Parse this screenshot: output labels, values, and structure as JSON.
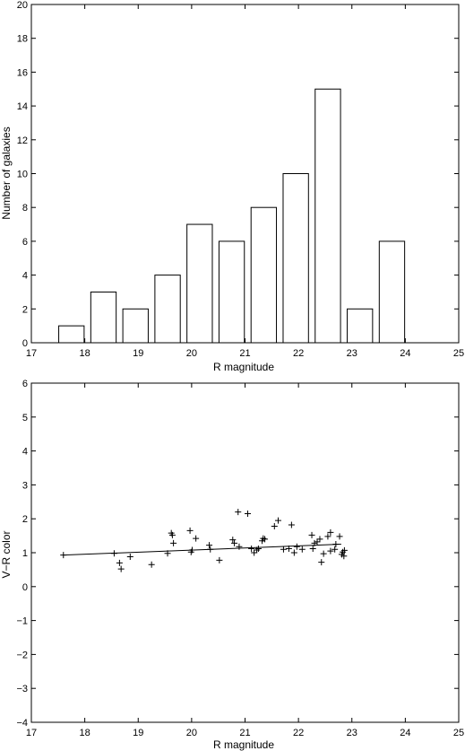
{
  "chart_data": [
    {
      "type": "bar",
      "xlabel": "R magnitude",
      "ylabel": "Number of galaxies",
      "xlim": [
        17,
        25
      ],
      "ylim": [
        0,
        20
      ],
      "xticks": [
        17,
        18,
        19,
        20,
        21,
        22,
        23,
        24,
        25
      ],
      "yticks": [
        0,
        2,
        4,
        6,
        8,
        10,
        12,
        14,
        16,
        18,
        20
      ],
      "bin_width": 0.5,
      "categories": [
        17.75,
        18.35,
        18.95,
        19.55,
        20.15,
        20.75,
        21.35,
        21.95,
        22.55,
        23.15,
        23.75
      ],
      "values": [
        1,
        3,
        2,
        4,
        7,
        6,
        8,
        10,
        15,
        2,
        6
      ],
      "bar_fill": "#ffffff",
      "bar_stroke": "#000000"
    },
    {
      "type": "scatter",
      "xlabel": "R magnitude",
      "ylabel": "V−R color",
      "xlim": [
        17,
        25
      ],
      "ylim": [
        -4,
        6
      ],
      "xticks": [
        17,
        18,
        19,
        20,
        21,
        22,
        23,
        24,
        25
      ],
      "yticks": [
        -4,
        -3,
        -2,
        -1,
        0,
        1,
        2,
        3,
        4,
        5,
        6
      ],
      "marker": "+",
      "points": [
        [
          17.6,
          0.93
        ],
        [
          18.55,
          0.98
        ],
        [
          18.65,
          0.7
        ],
        [
          18.68,
          0.52
        ],
        [
          18.85,
          0.88
        ],
        [
          19.25,
          0.65
        ],
        [
          19.55,
          0.98
        ],
        [
          19.62,
          1.58
        ],
        [
          19.64,
          1.52
        ],
        [
          19.66,
          1.28
        ],
        [
          19.97,
          1.65
        ],
        [
          19.99,
          1.02
        ],
        [
          20.01,
          1.08
        ],
        [
          20.08,
          1.42
        ],
        [
          20.33,
          1.22
        ],
        [
          20.35,
          1.1
        ],
        [
          20.52,
          0.78
        ],
        [
          20.77,
          1.38
        ],
        [
          20.8,
          1.28
        ],
        [
          20.87,
          2.2
        ],
        [
          20.89,
          1.18
        ],
        [
          21.05,
          2.15
        ],
        [
          21.12,
          1.12
        ],
        [
          21.17,
          1.0
        ],
        [
          21.22,
          1.08
        ],
        [
          21.25,
          1.12
        ],
        [
          21.32,
          1.35
        ],
        [
          21.34,
          1.42
        ],
        [
          21.37,
          1.4
        ],
        [
          21.55,
          1.78
        ],
        [
          21.62,
          1.95
        ],
        [
          21.72,
          1.1
        ],
        [
          21.82,
          1.12
        ],
        [
          21.87,
          1.82
        ],
        [
          21.92,
          1.0
        ],
        [
          21.97,
          1.18
        ],
        [
          22.07,
          1.1
        ],
        [
          22.25,
          1.52
        ],
        [
          22.27,
          1.12
        ],
        [
          22.3,
          1.28
        ],
        [
          22.35,
          1.32
        ],
        [
          22.4,
          1.4
        ],
        [
          22.43,
          0.72
        ],
        [
          22.47,
          0.97
        ],
        [
          22.55,
          1.48
        ],
        [
          22.6,
          1.6
        ],
        [
          22.6,
          1.05
        ],
        [
          22.68,
          1.1
        ],
        [
          22.7,
          1.25
        ],
        [
          22.77,
          1.48
        ],
        [
          22.81,
          0.95
        ],
        [
          22.83,
          1.02
        ],
        [
          22.85,
          0.9
        ],
        [
          22.86,
          1.07
        ]
      ],
      "fit_line": {
        "x": [
          17.6,
          22.8
        ],
        "y": [
          0.93,
          1.25
        ]
      },
      "marker_color": "#000000",
      "line_color": "#000000"
    }
  ]
}
